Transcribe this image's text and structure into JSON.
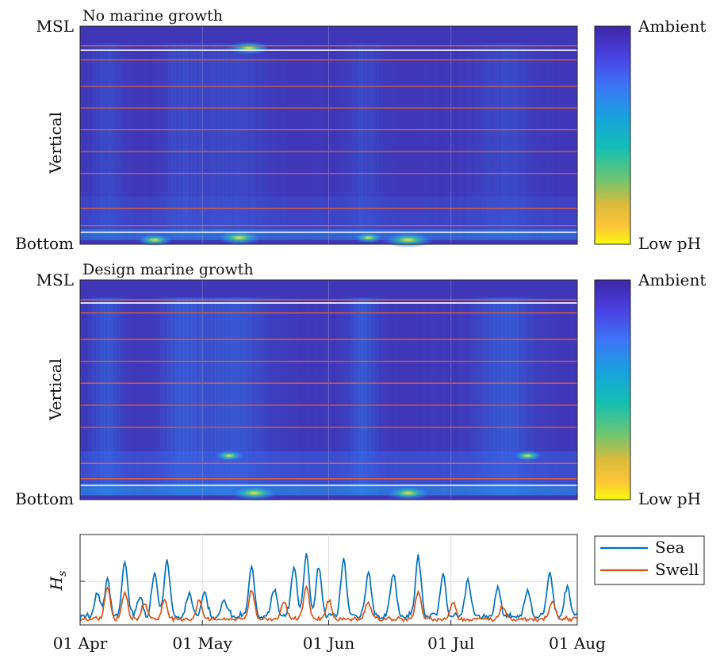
{
  "chart_data": [
    {
      "type": "heatmap",
      "title": "No marine growth",
      "ylabel": "Vertical",
      "yticks": [
        "MSL",
        "Bottom"
      ],
      "colorbar": {
        "top_label": "Ambient",
        "bottom_label": "Low pH",
        "colormap": "parula-reversed"
      },
      "x_range": [
        "01 Apr",
        "01 Aug"
      ],
      "grid": true,
      "horizontal_lines": {
        "red": [
          0.09,
          0.155,
          0.275,
          0.375,
          0.475,
          0.575,
          0.675,
          0.835,
          0.915
        ],
        "white": [
          0.11,
          0.945
        ]
      },
      "hotspots": [
        {
          "x": 0.15,
          "y": 0.98,
          "intensity": 0.6
        },
        {
          "x": 0.32,
          "y": 0.97,
          "intensity": 0.75
        },
        {
          "x": 0.34,
          "y": 0.1,
          "intensity": 0.7
        },
        {
          "x": 0.66,
          "y": 0.98,
          "intensity": 0.85
        },
        {
          "x": 0.58,
          "y": 0.97,
          "intensity": 0.5
        }
      ]
    },
    {
      "type": "heatmap",
      "title": "Design marine growth",
      "ylabel": "Vertical",
      "yticks": [
        "MSL",
        "Bottom"
      ],
      "colorbar": {
        "top_label": "Ambient",
        "bottom_label": "Low pH",
        "colormap": "parula-reversed"
      },
      "x_range": [
        "01 Apr",
        "01 Aug"
      ],
      "grid": true,
      "horizontal_lines": {
        "red": [
          0.09,
          0.15,
          0.27,
          0.37,
          0.47,
          0.57,
          0.67,
          0.835,
          0.905
        ],
        "white": [
          0.105,
          0.935
        ]
      },
      "hotspots": [
        {
          "x": 0.35,
          "y": 0.97,
          "intensity": 0.8
        },
        {
          "x": 0.66,
          "y": 0.97,
          "intensity": 0.75
        },
        {
          "x": 0.3,
          "y": 0.8,
          "intensity": 0.5
        },
        {
          "x": 0.9,
          "y": 0.8,
          "intensity": 0.5
        }
      ]
    },
    {
      "type": "line",
      "ylabel": "H_s",
      "xticks": [
        "01 Apr",
        "01 May",
        "01 Jun",
        "01 Jul",
        "01 Aug"
      ],
      "x_range": [
        "01 Apr",
        "01 Aug"
      ],
      "ylim": [
        0,
        1
      ],
      "grid": true,
      "legend": {
        "placement": "top-right outside"
      },
      "series": [
        {
          "name": "Sea",
          "color": "#0072BD",
          "peaks": [
            [
              0.035,
              0.25
            ],
            [
              0.055,
              0.38
            ],
            [
              0.09,
              0.62
            ],
            [
              0.12,
              0.22
            ],
            [
              0.15,
              0.5
            ],
            [
              0.175,
              0.62
            ],
            [
              0.22,
              0.25
            ],
            [
              0.25,
              0.28
            ],
            [
              0.29,
              0.18
            ],
            [
              0.345,
              0.55
            ],
            [
              0.39,
              0.3
            ],
            [
              0.43,
              0.55
            ],
            [
              0.455,
              0.68
            ],
            [
              0.48,
              0.55
            ],
            [
              0.53,
              0.62
            ],
            [
              0.58,
              0.5
            ],
            [
              0.63,
              0.48
            ],
            [
              0.68,
              0.65
            ],
            [
              0.73,
              0.45
            ],
            [
              0.78,
              0.4
            ],
            [
              0.84,
              0.3
            ],
            [
              0.9,
              0.3
            ],
            [
              0.945,
              0.5
            ],
            [
              0.98,
              0.32
            ]
          ],
          "base": 0.06
        },
        {
          "name": "Swell",
          "color": "#D95319",
          "peaks": [
            [
              0.055,
              0.35
            ],
            [
              0.09,
              0.3
            ],
            [
              0.13,
              0.18
            ],
            [
              0.17,
              0.2
            ],
            [
              0.24,
              0.2
            ],
            [
              0.345,
              0.32
            ],
            [
              0.41,
              0.2
            ],
            [
              0.455,
              0.35
            ],
            [
              0.5,
              0.2
            ],
            [
              0.58,
              0.18
            ],
            [
              0.68,
              0.3
            ],
            [
              0.75,
              0.18
            ],
            [
              0.85,
              0.15
            ],
            [
              0.95,
              0.2
            ]
          ],
          "base": 0.04
        }
      ]
    }
  ]
}
